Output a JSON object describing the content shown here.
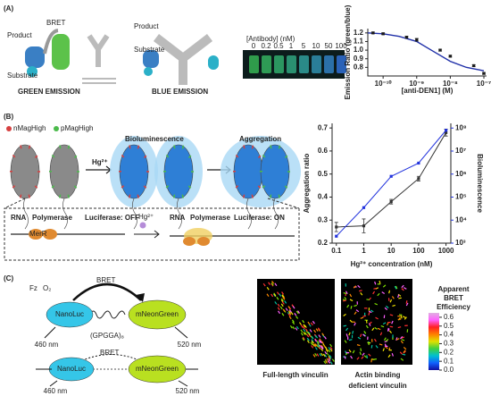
{
  "figure": {
    "panel_a": {
      "label": "(A)",
      "product_left": "Product",
      "bret": "BRET",
      "substrate_left": "Substrate",
      "product_right": "Product",
      "substrate_right": "Substrate",
      "green_emission": "GREEN EMISSION",
      "blue_emission": "BLUE EMISSION",
      "plate": {
        "title": "[Antibody] (nM)",
        "concentrations": [
          "0",
          "0.2",
          "0.5",
          "1",
          "5",
          "10",
          "50",
          "100"
        ]
      }
    },
    "panel_b": {
      "label": "(B)",
      "legend_red": "nMagHigh",
      "legend_green": "pMagHigh",
      "bioluminescence": "Bioluminescence",
      "aggregation": "Aggregation",
      "hg_arrow": "Hg²⁺",
      "off_rna": "RNA",
      "off_polymerase": "Polymerase",
      "off_luciferase": "Luciferase: OFF",
      "merr": "MerR",
      "hg_small": "Hg²⁺",
      "on_rna": "RNA",
      "on_polymerase": "Polymerase",
      "on_luciferase": "Luciferase: ON"
    },
    "panel_c": {
      "label": "(C)",
      "fz": "Fz",
      "o2": "O₂",
      "bret_top": "BRET",
      "nanoluc_top": "NanoLuc",
      "mneongreen_top": "mNeonGreen",
      "linker": "(GPGGA)₈",
      "nm460_top": "460 nm",
      "nm520_top": "520 nm",
      "bret_bottom": "BRET",
      "nanoluc_bottom": "NanoLuc",
      "mneongreen_bottom": "mNeonGreen",
      "nm460_bottom": "460 nm",
      "nm520_bottom": "520 nm",
      "caption_left": [
        "Full-length vinculin"
      ],
      "caption_right": [
        "Actin binding",
        "deficient vinculin"
      ],
      "colorbar": {
        "title_lines": [
          "Apparent",
          "BRET",
          "Efficiency"
        ],
        "ticks": [
          {
            "value": 0,
            "label": "0.0"
          },
          {
            "value": 0.1,
            "label": "0.1"
          },
          {
            "value": 0.2,
            "label": "0.2"
          },
          {
            "value": 0.3,
            "label": "0.3"
          },
          {
            "value": 0.4,
            "label": "0.4"
          },
          {
            "value": 0.5,
            "label": "0.5"
          },
          {
            "value": 0.6,
            "label": "0.6"
          }
        ],
        "lim": [
          0,
          0.65
        ]
      }
    }
  },
  "chart_data": [
    {
      "type": "scatter",
      "xlabel": "[anti-DEN1] (M)",
      "ylabel": "Emission Ratio (green/blue)",
      "xscale": "log",
      "xlim": [
        3.5e-11,
        1.2e-07
      ],
      "ylim": [
        0.7,
        1.25
      ],
      "xticks": [
        {
          "value": 1e-10,
          "label": "10⁻¹⁰"
        },
        {
          "value": 1e-09,
          "label": "10⁻⁹"
        },
        {
          "value": 1e-08,
          "label": "10⁻⁸"
        },
        {
          "value": 1e-07,
          "label": "10⁻⁷"
        }
      ],
      "yticks": [
        {
          "value": 0.8,
          "label": "0.8"
        },
        {
          "value": 0.9,
          "label": "0.9"
        },
        {
          "value": 1.0,
          "label": "1.0"
        },
        {
          "value": 1.1,
          "label": "1.1"
        },
        {
          "value": 1.2,
          "label": "1.2"
        }
      ],
      "x": [
        5e-11,
        1e-10,
        5e-10,
        1e-09,
        5e-09,
        1e-08,
        5e-08,
        1e-07
      ],
      "series": [
        {
          "color": "#1a1a1a",
          "values": [
            1.2,
            1.19,
            1.15,
            1.12,
            1.0,
            0.93,
            0.82,
            0.73
          ],
          "errors": [
            0.01,
            0.01,
            0.01,
            0.015,
            0.01,
            0.01,
            0.01,
            0.01
          ]
        }
      ],
      "fit": {
        "color": "#1f2fa8",
        "x": [
          3.5e-11,
          1e-10,
          3e-10,
          1e-09,
          3e-09,
          1e-08,
          3e-08,
          1e-07
        ],
        "values": [
          1.2,
          1.19,
          1.16,
          1.1,
          0.99,
          0.87,
          0.8,
          0.76
        ]
      }
    },
    {
      "type": "line",
      "xlabel": "Hg²⁺ concentration (nM)",
      "ylabel": "Aggregation ratio",
      "y2label": "Bioluminescence",
      "xscale": "log",
      "y2scale": "log",
      "xlim": [
        0.07,
        1500
      ],
      "ylim": [
        0.2,
        0.72
      ],
      "y2lim": [
        1000,
        160000000
      ],
      "xticks": [
        0.1,
        1,
        10,
        100,
        1000
      ],
      "yticks": [
        0.2,
        0.3,
        0.4,
        0.5,
        0.6,
        0.7
      ],
      "y2ticks": [
        {
          "value": 1000,
          "label": "10³"
        },
        {
          "value": 10000,
          "label": "10⁴"
        },
        {
          "value": 100000,
          "label": "10⁵"
        },
        {
          "value": 1000000,
          "label": "10⁶"
        },
        {
          "value": 10000000,
          "label": "10⁷"
        },
        {
          "value": 100000000,
          "label": "10⁸"
        }
      ],
      "x": [
        0.1,
        1,
        10,
        100,
        1000
      ],
      "series": [
        {
          "color": "#333333",
          "values": [
            0.27,
            0.275,
            0.38,
            0.48,
            0.68
          ],
          "errors": [
            0.02,
            0.03,
            0.01,
            0.01,
            0.015
          ]
        },
        {
          "color": "#2233dd",
          "axis": "y2",
          "values": [
            2000,
            35000,
            800000,
            3000000,
            80000000
          ]
        }
      ]
    }
  ]
}
